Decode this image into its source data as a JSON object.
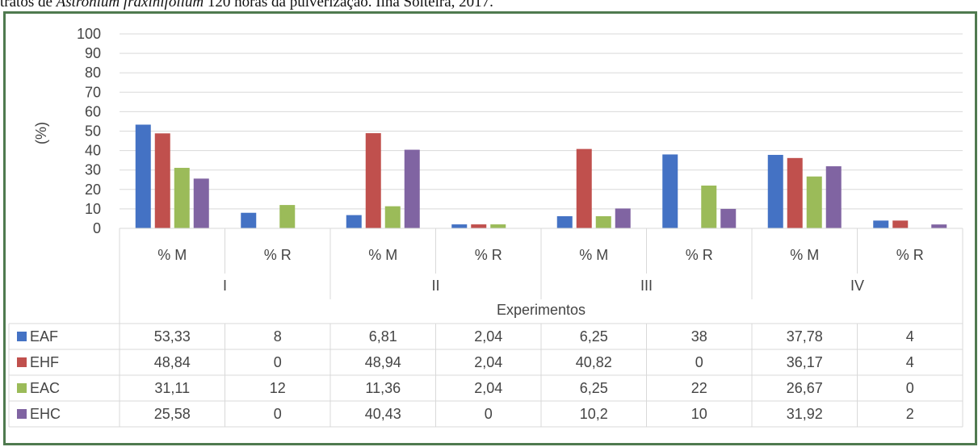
{
  "caption": {
    "prefix": "tratos de ",
    "species": "Astronium fraxinifolium",
    "suffix": " 120 horas da pulverização. Ilha Solteira, 2017."
  },
  "chart_data": {
    "type": "bar",
    "ylabel": "(%)",
    "xlabel": "Experimentos",
    "ylim": [
      0,
      100
    ],
    "yticks": [
      0,
      10,
      20,
      30,
      40,
      50,
      60,
      70,
      80,
      90,
      100
    ],
    "grid": true,
    "legend": "data-table",
    "groups": [
      "I",
      "II",
      "III",
      "IV"
    ],
    "subcategories": [
      "% M",
      "% R"
    ],
    "categories": [
      "% M",
      "% R",
      "% M",
      "% R",
      "% M",
      "% R",
      "% M",
      "% R"
    ],
    "series": [
      {
        "name": "EAF",
        "color": "#4472c4",
        "values": [
          53.33,
          8,
          6.81,
          2.04,
          6.25,
          38,
          37.78,
          4
        ],
        "labels": [
          "53,33",
          "8",
          "6,81",
          "2,04",
          "6,25",
          "38",
          "37,78",
          "4"
        ]
      },
      {
        "name": "EHF",
        "color": "#c0504d",
        "values": [
          48.84,
          0,
          48.94,
          2.04,
          40.82,
          0,
          36.17,
          4
        ],
        "labels": [
          "48,84",
          "0",
          "48,94",
          "2,04",
          "40,82",
          "0",
          "36,17",
          "4"
        ]
      },
      {
        "name": "EAC",
        "color": "#9bbb59",
        "values": [
          31.11,
          12,
          11.36,
          2.04,
          6.25,
          22,
          26.67,
          0
        ],
        "labels": [
          "31,11",
          "12",
          "11,36",
          "2,04",
          "6,25",
          "22",
          "26,67",
          "0"
        ]
      },
      {
        "name": "EHC",
        "color": "#8064a2",
        "values": [
          25.58,
          0,
          40.43,
          0,
          10.2,
          10,
          31.92,
          2
        ],
        "labels": [
          "25,58",
          "0",
          "40,43",
          "0",
          "10,2",
          "10",
          "31,92",
          "2"
        ]
      }
    ]
  }
}
